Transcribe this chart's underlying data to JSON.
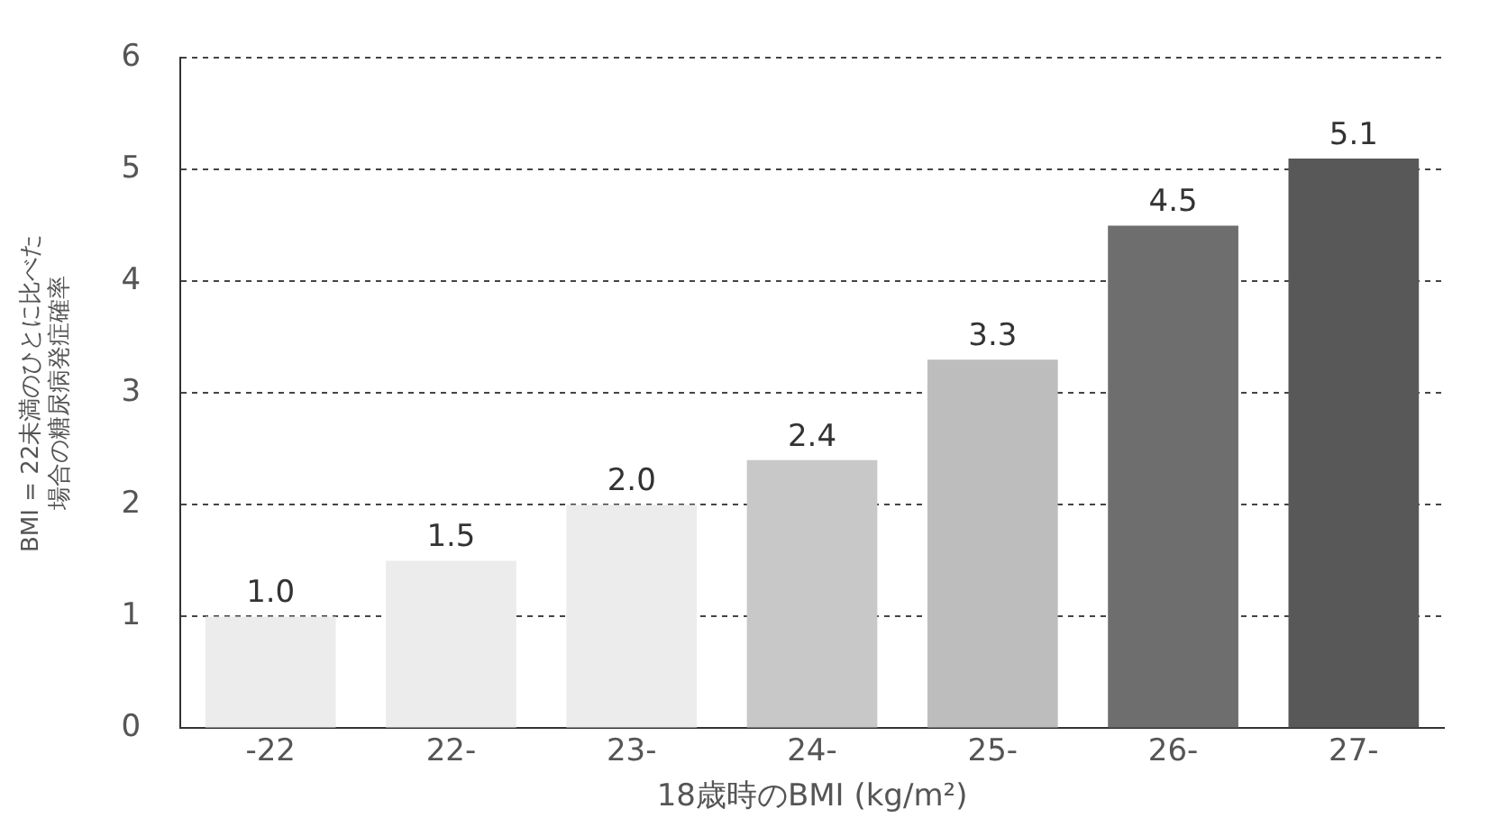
{
  "chart_data": {
    "type": "bar",
    "xlabel": "18歳時のBMI (kg/m²)",
    "ylabel": "BMI = 22未満のひとに比べた場合の糖尿病発症確率",
    "categories": [
      "-22",
      "22-",
      "23-",
      "24-",
      "25-",
      "26-",
      "27-"
    ],
    "values": [
      1.0,
      1.5,
      2.0,
      2.4,
      3.3,
      4.5,
      5.1
    ],
    "value_labels": [
      "1.0",
      "1.5",
      "2.0",
      "2.4",
      "3.3",
      "4.5",
      "5.1"
    ],
    "colors": [
      "#ececec",
      "#ececec",
      "#ececec",
      "#c8c8c8",
      "#bdbdbd",
      "#6e6e6e",
      "#585858"
    ],
    "ylim": [
      0,
      6
    ],
    "yticks": [
      0,
      1,
      2,
      3,
      4,
      5,
      6
    ],
    "grid": "y",
    "legend": false
  }
}
